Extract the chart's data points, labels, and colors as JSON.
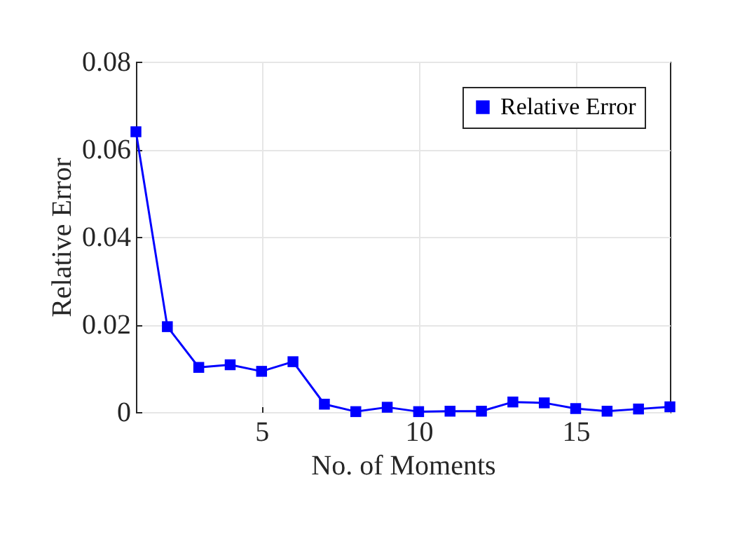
{
  "chart_data": {
    "type": "line",
    "xlabel": "No. of Moments",
    "ylabel": "Relative Error",
    "x": [
      1,
      2,
      3,
      4,
      5,
      6,
      7,
      8,
      9,
      10,
      11,
      12,
      13,
      14,
      15,
      16,
      17,
      18
    ],
    "series": [
      {
        "name": "Relative Error",
        "color": "#0000ff",
        "values": [
          0.064,
          0.0195,
          0.0102,
          0.0108,
          0.0093,
          0.0115,
          0.0018,
          0.0001,
          0.0011,
          0.0001,
          0.0002,
          0.0002,
          0.0023,
          0.0021,
          0.0008,
          0.0002,
          0.0007,
          0.0012
        ]
      }
    ],
    "xlim": [
      1,
      18
    ],
    "xticks": [
      5,
      10,
      15
    ],
    "ylim": [
      0,
      0.08
    ],
    "yticks": [
      0,
      0.02,
      0.04,
      0.06,
      0.08
    ],
    "grid": true,
    "legend": "top right",
    "marker": "square",
    "line_style": "solid"
  }
}
